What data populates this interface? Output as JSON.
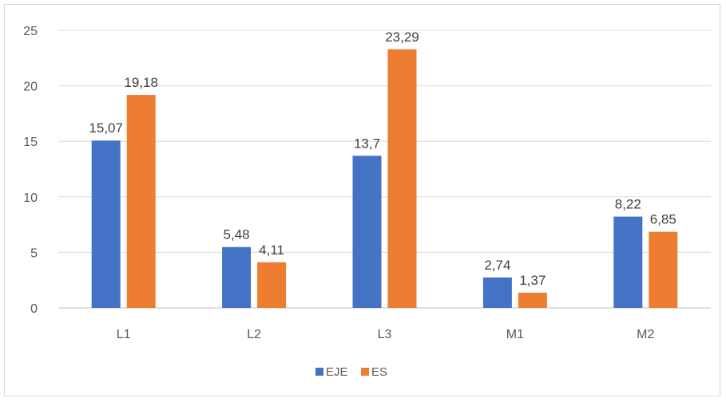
{
  "chart_data": {
    "type": "bar",
    "title": "",
    "xlabel": "",
    "ylabel": "",
    "categories": [
      "L1",
      "L2",
      "L3",
      "M1",
      "M2"
    ],
    "series": [
      {
        "name": "EJE",
        "color": "#4472c4",
        "values": [
          15.07,
          5.48,
          13.7,
          2.74,
          8.22
        ],
        "labels": [
          "15,07",
          "5,48",
          "13,7",
          "2,74",
          "8,22"
        ]
      },
      {
        "name": "ES",
        "color": "#ed7d31",
        "values": [
          19.18,
          4.11,
          23.29,
          1.37,
          6.85
        ],
        "labels": [
          "19,18",
          "4,11",
          "23,29",
          "1,37",
          "6,85"
        ]
      }
    ],
    "ylim": [
      0,
      25
    ],
    "yticks": [
      0,
      5,
      10,
      15,
      20,
      25
    ],
    "grid": true,
    "legend": "bottom"
  }
}
